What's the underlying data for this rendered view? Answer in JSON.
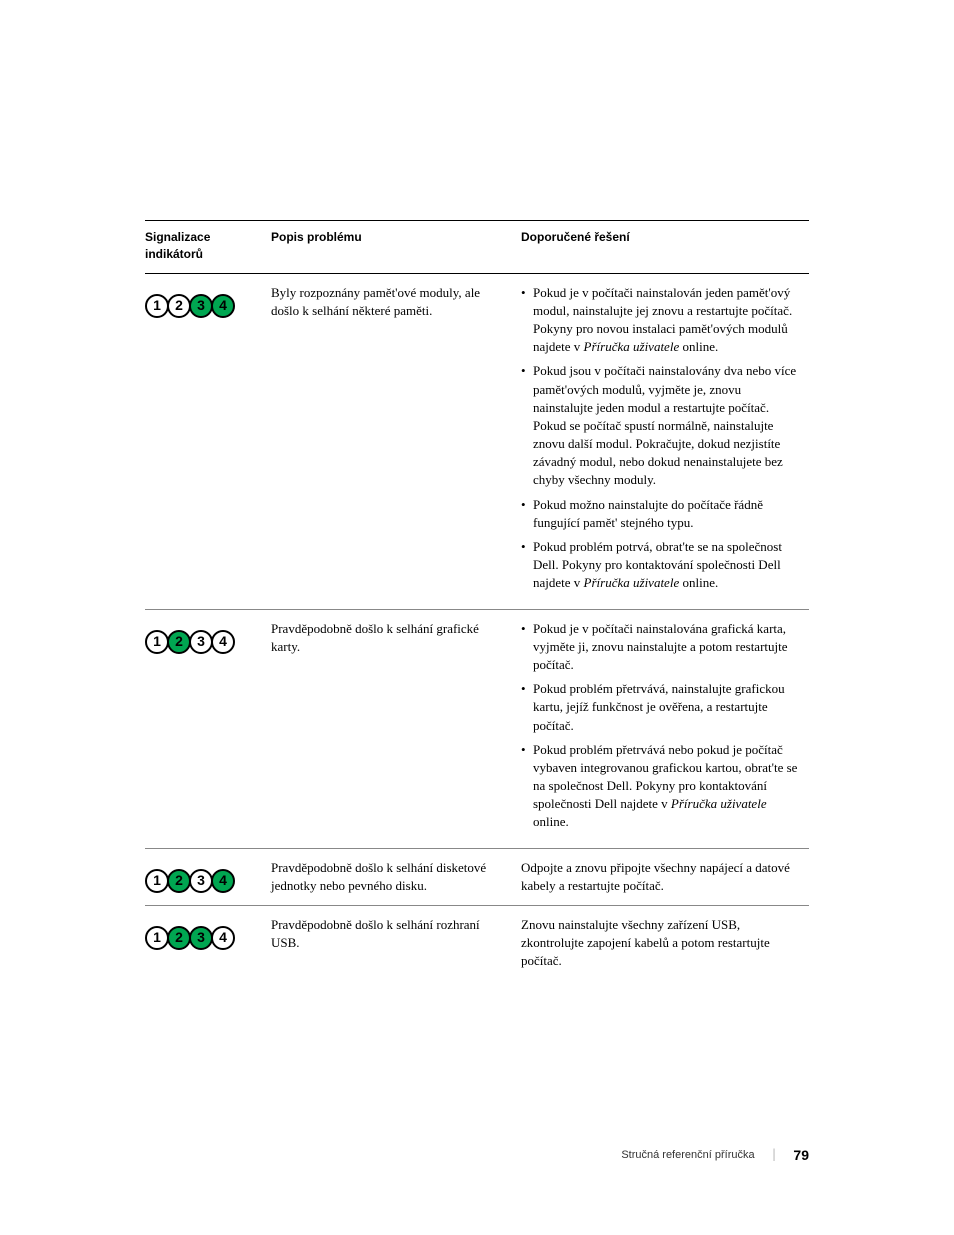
{
  "table": {
    "headers": {
      "col1": "Signalizace indikátorů",
      "col2": "Popis problému",
      "col3": "Doporučené řešení"
    },
    "rows": [
      {
        "pattern": [
          "off",
          "off",
          "green",
          "green"
        ],
        "desc": "Byly rozpoznány pamět'ové moduly, ale došlo k selhání některé paměti.",
        "sol_type": "list",
        "sol": [
          {
            "pre": "Pokud je v počítači nainstalován jeden pamět'ový modul, nainstalujte jej znovu a restartujte počítač. Pokyny pro novou instalaci pamět'ových modulů najdete v ",
            "it": "Příručka uživatele",
            "post": " online."
          },
          {
            "pre": "Pokud jsou v počítači nainstalovány dva nebo více pamět'ových modulů, vyjměte je, znovu nainstalujte jeden modul a restartujte počítač. Pokud se počítač spustí normálně, nainstalujte znovu další modul. Pokračujte, dokud nezjistíte závadný modul, nebo dokud nenainstalujete bez chyby všechny moduly.",
            "it": "",
            "post": ""
          },
          {
            "pre": "Pokud možno nainstalujte do počítače řádně fungující pamět' stejného typu.",
            "it": "",
            "post": ""
          },
          {
            "pre": "Pokud problém potrvá, obrat'te se na společnost Dell. Pokyny pro kontaktování společnosti Dell najdete v ",
            "it": "Příručka uživatele",
            "post": " online."
          }
        ]
      },
      {
        "pattern": [
          "off",
          "green",
          "off",
          "off"
        ],
        "desc": "Pravděpodobně došlo k selhání grafické karty.",
        "sol_type": "list",
        "sol": [
          {
            "pre": "Pokud je v počítači nainstalována grafická karta, vyjměte ji, znovu nainstalujte a potom restartujte počítač.",
            "it": "",
            "post": ""
          },
          {
            "pre": "Pokud problém přetrvává, nainstalujte grafickou kartu, jejíž funkčnost je ověřena, a restartujte počítač.",
            "it": "",
            "post": ""
          },
          {
            "pre": "Pokud problém přetrvává nebo pokud je počítač vybaven integrovanou grafickou kartou, obrat'te se na společnost Dell. Pokyny pro kontaktování společnosti Dell najdete v ",
            "it": "Příručka uživatele",
            "post": " online."
          }
        ]
      },
      {
        "pattern": [
          "off",
          "green",
          "off",
          "green"
        ],
        "desc": "Pravděpodobně došlo k selhání disketové jednotky nebo pevného disku.",
        "sol_type": "plain",
        "sol_plain": "Odpojte a znovu připojte všechny napájecí a datové kabely a restartujte počítač."
      },
      {
        "pattern": [
          "off",
          "green",
          "green",
          "off"
        ],
        "desc": "Pravděpodobně došlo k selhání rozhraní USB.",
        "sol_type": "plain",
        "sol_plain": "Znovu nainstalujte všechny zařízení USB, zkontrolujte zapojení kabelů a potom restartujte počítač."
      }
    ]
  },
  "footer": {
    "title": "Stručná referenční příručka",
    "page": "79"
  },
  "colors": {
    "green": "#00a651",
    "yellow": "#fff200",
    "off": "#ffffff",
    "border": "#000000"
  }
}
